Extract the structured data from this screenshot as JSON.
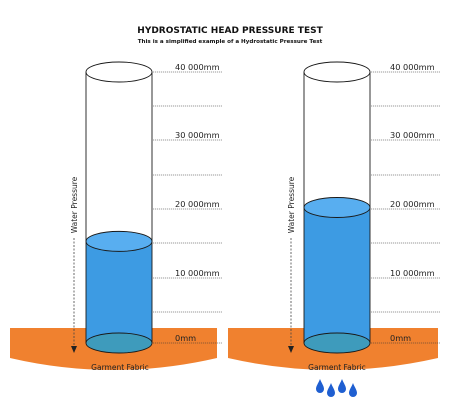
{
  "header": {
    "title": "HYDROSTATIC HEAD PRESSURE TEST",
    "subtitle": "This is a simplified example of a Hydrostatic Pressure Test"
  },
  "scale_labels": [
    "40 000mm",
    "30 000mm",
    "20 000mm",
    "10 000mm",
    "0mm"
  ],
  "columns": [
    {
      "axis_label": "Water Pressure",
      "fabric_label": "Garment Fabric",
      "water_level_mm": 15000,
      "droplets": 0
    },
    {
      "axis_label": "Water Pressure",
      "fabric_label": "Garment Fabric",
      "water_level_mm": 20000,
      "droplets": 4
    }
  ],
  "colors": {
    "water": "#3d9be3",
    "water_top": "#58aef0",
    "fabric": "#f0812f",
    "droplet": "#1f5fd1",
    "outline": "#1a1a1a"
  }
}
